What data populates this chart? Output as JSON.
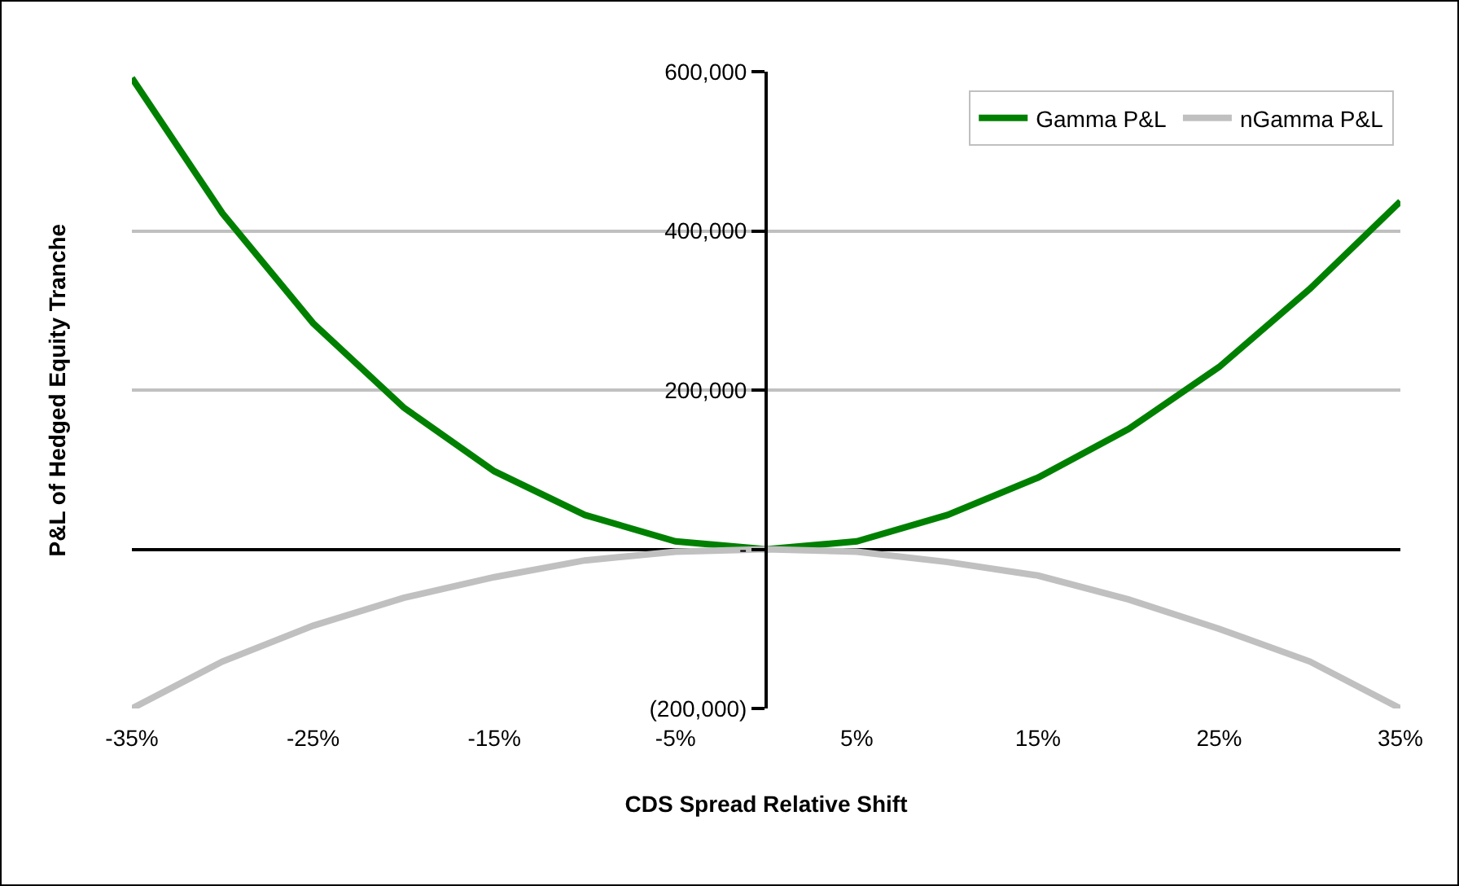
{
  "chart_data": {
    "type": "line",
    "xlabel": "CDS Spread Relative Shift",
    "ylabel": "P&L of Hedged Equity Tranche",
    "x": [
      -35,
      -30,
      -25,
      -20,
      -15,
      -10,
      -5,
      0,
      5,
      10,
      15,
      20,
      25,
      30,
      35
    ],
    "series": [
      {
        "name": "Gamma P&L",
        "color": "#008000",
        "values": [
          592000,
          422000,
          284000,
          178000,
          98000,
          43000,
          10000,
          0,
          10000,
          43000,
          90000,
          151000,
          229000,
          327000,
          437000
        ]
      },
      {
        "name": "nGamma P&L",
        "color": "#c0c0c0",
        "values": [
          -200000,
          -141000,
          -96000,
          -61000,
          -35000,
          -14000,
          -3000,
          0,
          -3000,
          -16000,
          -33000,
          -63000,
          -100000,
          -141000,
          -200000
        ]
      }
    ],
    "xlim": [
      -35,
      35
    ],
    "xticks": [
      {
        "value": -35,
        "label": "-35%"
      },
      {
        "value": -25,
        "label": "-25%"
      },
      {
        "value": -15,
        "label": "-15%"
      },
      {
        "value": -5,
        "label": "-5%"
      },
      {
        "value": 5,
        "label": "5%"
      },
      {
        "value": 15,
        "label": "15%"
      },
      {
        "value": 25,
        "label": "25%"
      },
      {
        "value": 35,
        "label": "35%"
      }
    ],
    "ylim": [
      -200000,
      600000
    ],
    "yticks": [
      {
        "value": -200000,
        "label": "(200,000)"
      },
      {
        "value": 0,
        "label": "-"
      },
      {
        "value": 200000,
        "label": "200,000"
      },
      {
        "value": 400000,
        "label": "400,000"
      },
      {
        "value": 600000,
        "label": "600,000"
      }
    ],
    "grid": "y",
    "legend": "top right",
    "marker": "none",
    "line_style": "solid"
  }
}
